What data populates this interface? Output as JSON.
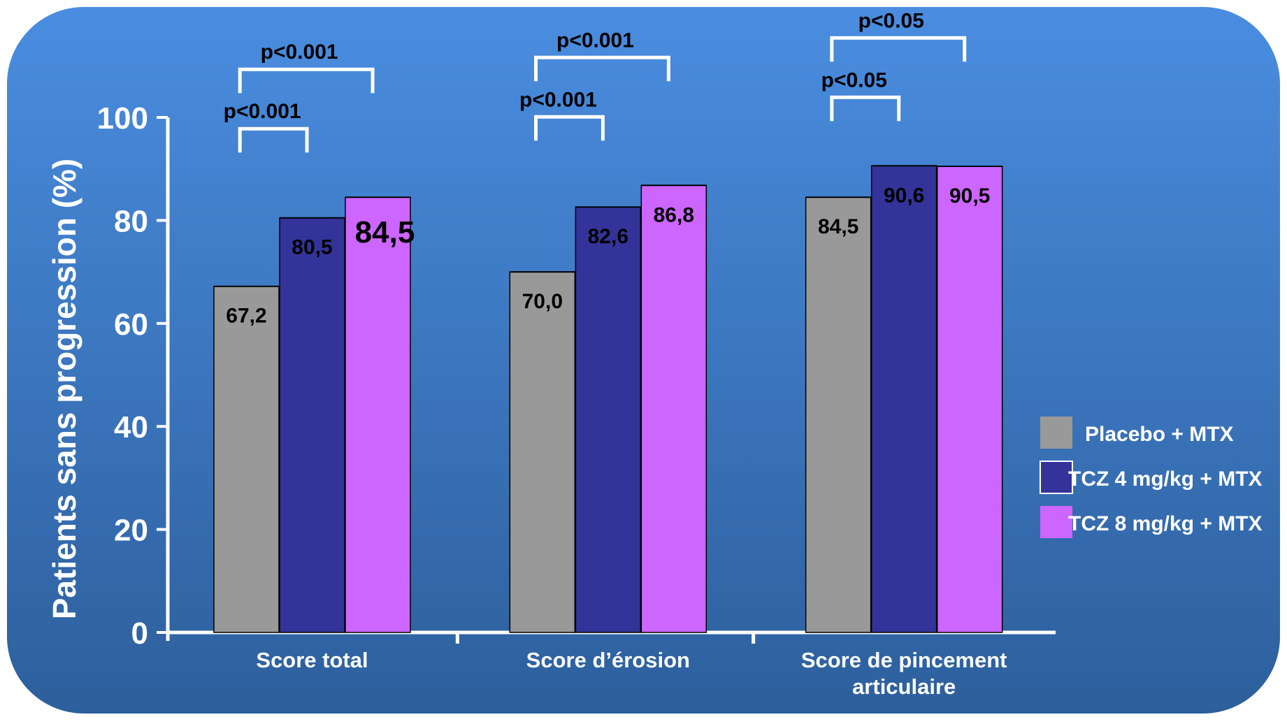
{
  "chart_data": {
    "type": "bar",
    "title": "",
    "xlabel": "",
    "ylabel": "Patients sans progression (%)",
    "ylim": [
      0,
      100
    ],
    "yticks": [
      "0",
      "20",
      "40",
      "60",
      "80",
      "100"
    ],
    "grid": false,
    "legend_position": "right",
    "categories": [
      [
        "Score total"
      ],
      [
        "Score d’érosion"
      ],
      [
        "Score de pincement",
        "articulaire"
      ]
    ],
    "series": [
      {
        "name": "Placebo + MTX",
        "color": "#999999",
        "values": [
          67.2,
          70.0,
          84.5
        ],
        "labels": [
          "67,2",
          "70,0",
          "84,5"
        ]
      },
      {
        "name": "TCZ 4 mg/kg + MTX",
        "color": "#333399",
        "values": [
          80.5,
          82.6,
          90.6
        ],
        "labels": [
          "80,5",
          "82,6",
          "90,6"
        ]
      },
      {
        "name": "TCZ 8 mg/kg + MTX",
        "color": "#cc66ff",
        "values": [
          84.5,
          86.8,
          90.5
        ],
        "labels": [
          "84,5",
          "86,8",
          "90,5"
        ]
      }
    ],
    "annotations": [
      {
        "group": 0,
        "from_series": 0,
        "to_series": 1,
        "text": "p<0.001"
      },
      {
        "group": 0,
        "from_series": 0,
        "to_series": 2,
        "text": "p<0.001"
      },
      {
        "group": 1,
        "from_series": 0,
        "to_series": 1,
        "text": "p<0.001"
      },
      {
        "group": 1,
        "from_series": 0,
        "to_series": 2,
        "text": "p<0.001"
      },
      {
        "group": 2,
        "from_series": 0,
        "to_series": 1,
        "text": "p<0.05"
      },
      {
        "group": 2,
        "from_series": 0,
        "to_series": 2,
        "text": "p<0.05"
      }
    ],
    "colors": {
      "background_top": "#4a8de0",
      "background_bottom": "#2d5f9c",
      "axis": "#ffffff",
      "text_dark": "#000000"
    }
  }
}
